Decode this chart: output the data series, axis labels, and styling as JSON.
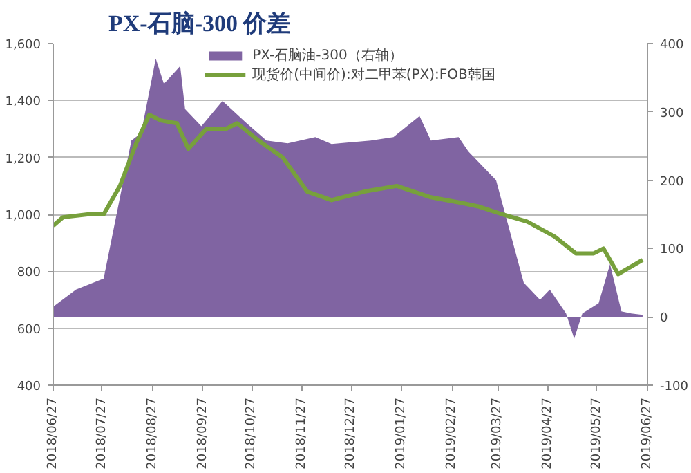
{
  "chart_data": {
    "type": "line",
    "title": "PX-石脑-300 价差",
    "legend": "top",
    "grid": "y",
    "marker": "none",
    "xlim": [
      "2018-06-27",
      "2019-06-27"
    ],
    "xticks": [
      {
        "value": "2018-06-27",
        "label": "2018/06/27"
      },
      {
        "value": "2018-07-27",
        "label": "2018/07/27"
      },
      {
        "value": "2018-08-27",
        "label": "2018/08/27"
      },
      {
        "value": "2018-09-27",
        "label": "2018/09/27"
      },
      {
        "value": "2018-10-27",
        "label": "2018/10/27"
      },
      {
        "value": "2018-11-27",
        "label": "2018/11/27"
      },
      {
        "value": "2018-12-27",
        "label": "2018/12/27"
      },
      {
        "value": "2019-01-27",
        "label": "2019/01/27"
      },
      {
        "value": "2019-02-27",
        "label": "2019/02/27"
      },
      {
        "value": "2019-03-27",
        "label": "2019/03/27"
      },
      {
        "value": "2019-04-27",
        "label": "2019/04/27"
      },
      {
        "value": "2019-05-27",
        "label": "2019/05/27"
      },
      {
        "value": "2019-06-27",
        "label": "2019/06/27"
      }
    ],
    "ylim": [
      400,
      1600
    ],
    "yticks": [
      400,
      600,
      800,
      {
        "value": 1000,
        "label": "1,000"
      },
      {
        "value": 1200,
        "label": "1,200"
      },
      {
        "value": 1400,
        "label": "1,400"
      },
      {
        "value": 1600,
        "label": "1,600"
      }
    ],
    "y2lim": [
      -100,
      400
    ],
    "y2ticks": [
      -100,
      0,
      100,
      200,
      300,
      400
    ],
    "series": [
      {
        "name": "PX-石脑油-300（右轴）",
        "type": "area",
        "axis": "y2",
        "color": "#8064a2",
        "x": [
          "2018-06-27",
          "2018-07-11",
          "2018-07-28",
          "2018-08-04",
          "2018-08-14",
          "2018-08-20",
          "2018-08-29",
          "2018-09-03",
          "2018-09-13",
          "2018-09-16",
          "2018-09-26",
          "2018-10-09",
          "2018-10-23",
          "2018-11-05",
          "2018-11-18",
          "2018-12-05",
          "2018-12-15",
          "2019-01-08",
          "2019-01-22",
          "2019-02-07",
          "2019-02-14",
          "2019-03-03",
          "2019-03-09",
          "2019-03-26",
          "2019-04-12",
          "2019-04-22",
          "2019-04-28",
          "2019-05-08",
          "2019-05-13",
          "2019-05-18",
          "2019-05-28",
          "2019-06-04",
          "2019-06-11",
          "2019-06-17",
          "2019-06-24"
        ],
        "values": [
          15,
          40,
          56,
          139,
          258,
          269,
          378,
          341,
          367,
          304,
          279,
          316,
          285,
          258,
          254,
          263,
          253,
          258,
          263,
          294,
          258,
          263,
          242,
          200,
          50,
          25,
          40,
          5,
          -32,
          5,
          20,
          77,
          8,
          5,
          3
        ]
      },
      {
        "name": "现货价(中间价):对二甲苯(PX):FOB韩国",
        "color": "#77a03c",
        "x": [
          "2018-06-27",
          "2018-07-03",
          "2018-07-18",
          "2018-07-28",
          "2018-08-07",
          "2018-08-17",
          "2018-08-25",
          "2018-09-01",
          "2018-09-11",
          "2018-09-18",
          "2018-09-29",
          "2018-10-11",
          "2018-10-18",
          "2018-10-31",
          "2018-11-15",
          "2018-11-30",
          "2018-12-15",
          "2019-01-04",
          "2019-01-24",
          "2019-02-14",
          "2019-03-05",
          "2019-03-15",
          "2019-03-30",
          "2019-04-14",
          "2019-05-01",
          "2019-05-14",
          "2019-05-25",
          "2019-05-31",
          "2019-06-09",
          "2019-06-18",
          "2019-06-24"
        ],
        "values": [
          960,
          990,
          1000,
          1000,
          1100,
          1250,
          1350,
          1330,
          1320,
          1230,
          1300,
          1300,
          1320,
          1260,
          1200,
          1080,
          1050,
          1080,
          1100,
          1060,
          1040,
          1028,
          1000,
          975,
          922,
          863,
          863,
          880,
          790,
          820,
          840
        ]
      }
    ]
  }
}
